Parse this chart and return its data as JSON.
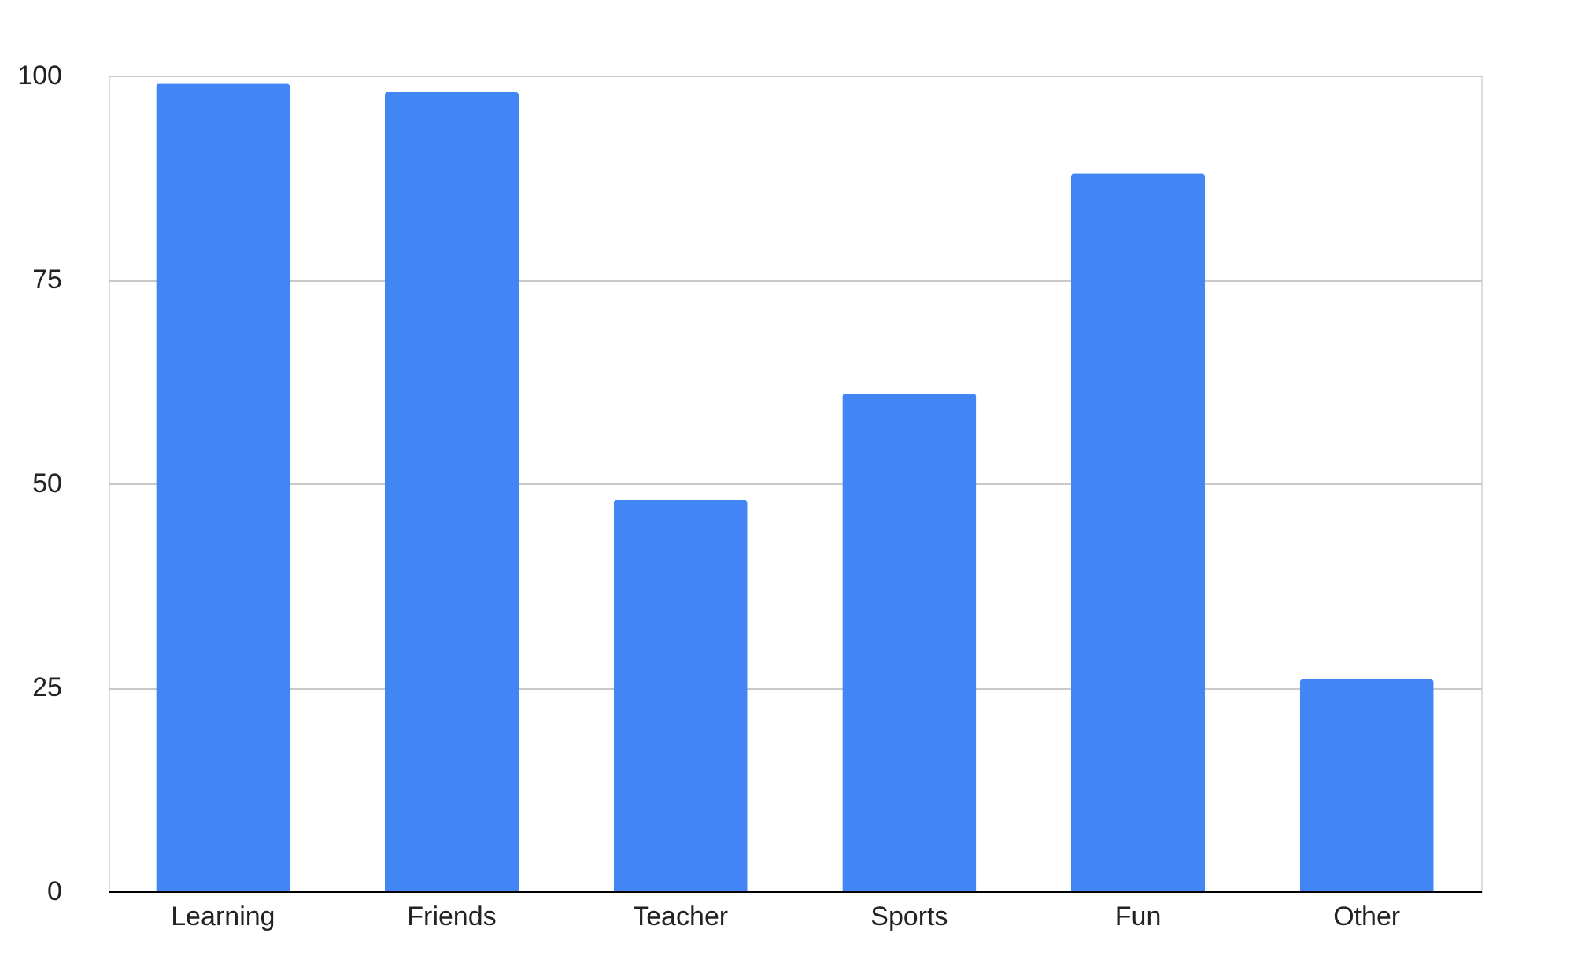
{
  "chart_data": {
    "type": "bar",
    "categories": [
      "Learning",
      "Friends",
      "Teacher",
      "Sports",
      "Fun",
      "Other"
    ],
    "values": [
      99,
      98,
      48,
      61,
      88,
      26
    ],
    "color": "#4285f4",
    "ylim": [
      0,
      100
    ],
    "yticks": [
      0,
      25,
      50,
      75,
      100
    ],
    "grid": "y",
    "legend": false
  }
}
